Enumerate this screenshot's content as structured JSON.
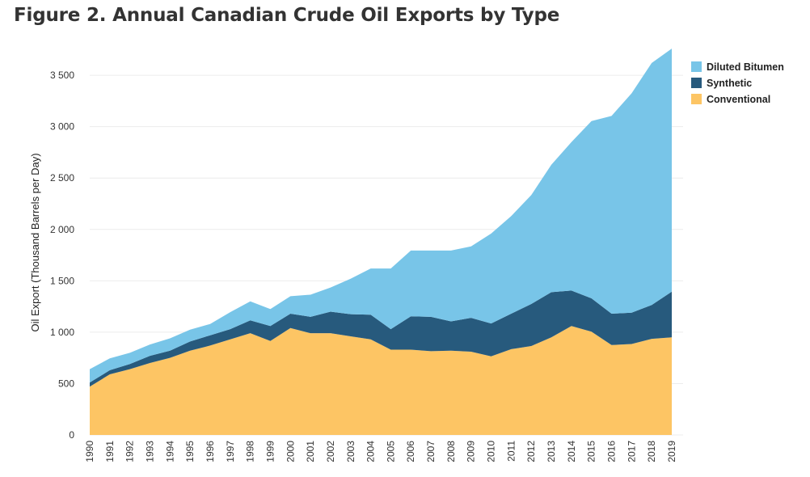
{
  "colors": {
    "diluted_bitumen": "#78c5e8",
    "synthetic": "#275a7d",
    "conventional": "#fdc564",
    "grid": "#ececec",
    "axis": "#999999"
  },
  "chart_data": {
    "type": "area",
    "stacked": true,
    "title": "Figure 2. Annual Canadian Crude Oil Exports by Type",
    "xlabel": "",
    "ylabel": "Oil Export (Thousand Barrels per Day)",
    "ylim": [
      0,
      3800
    ],
    "yticks": [
      0,
      500,
      1000,
      1500,
      2000,
      2500,
      3000,
      3500
    ],
    "ytick_labels": [
      "0",
      "500",
      "1 000",
      "1 500",
      "2 000",
      "2 500",
      "3 000",
      "3 500"
    ],
    "legend_position": "top-right",
    "categories": [
      "1990",
      "1991",
      "1992",
      "1993",
      "1994",
      "1995",
      "1996",
      "1997",
      "1998",
      "1999",
      "2000",
      "2001",
      "2002",
      "2003",
      "2004",
      "2005",
      "2006",
      "2007",
      "2008",
      "2009",
      "2010",
      "2011",
      "2012",
      "2013",
      "2014",
      "2015",
      "2016",
      "2017",
      "2018",
      "2019"
    ],
    "series": [
      {
        "name": "Conventional",
        "key": "conventional",
        "values": [
          470,
          590,
          640,
          700,
          750,
          820,
          870,
          930,
          990,
          915,
          1040,
          990,
          990,
          960,
          930,
          830,
          830,
          815,
          820,
          810,
          765,
          835,
          865,
          950,
          1060,
          1005,
          875,
          885,
          935,
          950
        ]
      },
      {
        "name": "Synthetic",
        "key": "synthetic",
        "values": [
          40,
          40,
          50,
          70,
          70,
          90,
          100,
          100,
          125,
          145,
          140,
          160,
          210,
          215,
          240,
          200,
          325,
          335,
          285,
          330,
          320,
          345,
          410,
          440,
          345,
          325,
          305,
          305,
          330,
          445
        ]
      },
      {
        "name": "Diluted Bitumen",
        "key": "diluted_bitumen",
        "values": [
          130,
          115,
          110,
          110,
          120,
          115,
          110,
          165,
          185,
          165,
          170,
          215,
          235,
          345,
          450,
          590,
          640,
          645,
          690,
          695,
          875,
          950,
          1060,
          1240,
          1445,
          1725,
          1925,
          2135,
          2355,
          2365
        ]
      }
    ],
    "legend": [
      {
        "label": "Diluted Bitumen",
        "key": "diluted_bitumen"
      },
      {
        "label": "Synthetic",
        "key": "synthetic"
      },
      {
        "label": "Conventional",
        "key": "conventional"
      }
    ]
  }
}
